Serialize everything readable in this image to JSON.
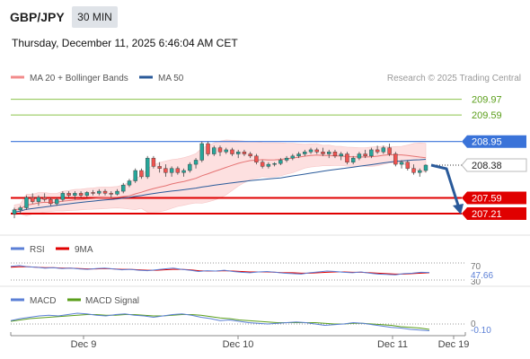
{
  "header": {
    "symbol": "GBP/JPY",
    "interval": "30 MIN",
    "timestamp": "Thursday, December 11, 2025 6:46:04 AM CET"
  },
  "legend": {
    "ma20_bb": "MA 20 + Bollinger Bands",
    "ma50": "MA 50",
    "rsi": "RSI",
    "rsi_ma": "9MA",
    "macd": "MACD",
    "macd_signal": "MACD Signal"
  },
  "watermark": "Research © 2025 Trading Central",
  "colors": {
    "candle_up": "#26a69a",
    "candle_down": "#ef5350",
    "resistance_green": "#8bc34a",
    "pivot_blue": "#3a73d9",
    "support_red": "#e00000",
    "ma20": "#e57373",
    "ma50": "#2a5a9a",
    "bands_fill": "#fde0e0",
    "rsi": "#5b7fd6",
    "rsi_ma": "#e00000",
    "macd": "#5b7fd6",
    "macd_signal": "#5a9e1a",
    "arrow": "#2a5a9a"
  },
  "chart_data": {
    "type": "candlestick",
    "ylim": [
      206.95,
      210.2
    ],
    "x_ticks": [
      "Dec 9",
      "Dec 10",
      "Dec 11",
      "Dec 19"
    ],
    "levels": [
      {
        "label": "209.97",
        "value": 209.97,
        "kind": "resistance"
      },
      {
        "label": "209.59",
        "value": 209.59,
        "kind": "resistance"
      },
      {
        "label": "208.95",
        "value": 208.95,
        "kind": "pivot"
      },
      {
        "label": "208.38",
        "value": 208.38,
        "kind": "last"
      },
      {
        "label": "207.59",
        "value": 207.59,
        "kind": "support"
      },
      {
        "label": "207.21",
        "value": 207.21,
        "kind": "support"
      }
    ],
    "forecast": [
      208.38,
      207.21
    ],
    "candles": [
      [
        207.2,
        207.35,
        207.1,
        207.3
      ],
      [
        207.3,
        207.4,
        207.2,
        207.35
      ],
      [
        207.35,
        207.65,
        207.3,
        207.6
      ],
      [
        207.6,
        207.7,
        207.45,
        207.5
      ],
      [
        207.5,
        207.65,
        207.4,
        207.6
      ],
      [
        207.6,
        207.7,
        207.5,
        207.55
      ],
      [
        207.55,
        207.6,
        207.4,
        207.45
      ],
      [
        207.45,
        207.6,
        207.4,
        207.55
      ],
      [
        207.55,
        207.75,
        207.5,
        207.7
      ],
      [
        207.7,
        207.75,
        207.6,
        207.65
      ],
      [
        207.65,
        207.75,
        207.55,
        207.7
      ],
      [
        207.7,
        207.75,
        207.6,
        207.65
      ],
      [
        207.65,
        207.75,
        207.6,
        207.72
      ],
      [
        207.72,
        207.78,
        207.65,
        207.7
      ],
      [
        207.7,
        207.8,
        207.65,
        207.75
      ],
      [
        207.75,
        207.8,
        207.65,
        207.7
      ],
      [
        207.7,
        207.75,
        207.6,
        207.68
      ],
      [
        207.68,
        207.8,
        207.65,
        207.75
      ],
      [
        207.75,
        207.95,
        207.7,
        207.9
      ],
      [
        207.9,
        208.05,
        207.85,
        208.0
      ],
      [
        208.0,
        208.3,
        207.95,
        208.25
      ],
      [
        208.25,
        208.3,
        208.05,
        208.1
      ],
      [
        208.1,
        208.6,
        208.05,
        208.55
      ],
      [
        208.55,
        208.6,
        208.3,
        208.35
      ],
      [
        208.35,
        208.45,
        208.2,
        208.3
      ],
      [
        208.3,
        208.4,
        208.1,
        208.2
      ],
      [
        208.2,
        208.35,
        208.1,
        208.3
      ],
      [
        208.3,
        208.35,
        208.15,
        208.2
      ],
      [
        208.2,
        208.3,
        208.1,
        208.25
      ],
      [
        208.25,
        208.45,
        208.2,
        208.4
      ],
      [
        208.4,
        208.55,
        208.3,
        208.5
      ],
      [
        208.5,
        208.95,
        208.45,
        208.9
      ],
      [
        208.9,
        208.95,
        208.6,
        208.65
      ],
      [
        208.65,
        208.85,
        208.6,
        208.8
      ],
      [
        208.8,
        208.85,
        208.6,
        208.7
      ],
      [
        208.7,
        208.8,
        208.65,
        208.75
      ],
      [
        208.75,
        208.8,
        208.6,
        208.65
      ],
      [
        208.65,
        208.75,
        208.55,
        208.7
      ],
      [
        208.7,
        208.75,
        208.6,
        208.65
      ],
      [
        208.65,
        208.7,
        208.55,
        208.6
      ],
      [
        208.6,
        208.65,
        208.4,
        208.45
      ],
      [
        208.45,
        208.5,
        208.3,
        208.35
      ],
      [
        208.35,
        208.45,
        208.3,
        208.4
      ],
      [
        208.4,
        208.45,
        208.35,
        208.42
      ],
      [
        208.42,
        208.55,
        208.38,
        208.5
      ],
      [
        208.5,
        208.6,
        208.45,
        208.55
      ],
      [
        208.55,
        208.65,
        208.5,
        208.6
      ],
      [
        208.6,
        208.7,
        208.55,
        208.65
      ],
      [
        208.65,
        208.75,
        208.6,
        208.7
      ],
      [
        208.7,
        208.8,
        208.65,
        208.75
      ],
      [
        208.75,
        208.8,
        208.65,
        208.7
      ],
      [
        208.7,
        208.8,
        208.6,
        208.65
      ],
      [
        208.65,
        208.75,
        208.55,
        208.7
      ],
      [
        208.7,
        208.75,
        208.55,
        208.6
      ],
      [
        208.6,
        208.7,
        208.5,
        208.65
      ],
      [
        208.65,
        208.7,
        208.4,
        208.45
      ],
      [
        208.45,
        208.6,
        208.4,
        208.55
      ],
      [
        208.55,
        208.7,
        208.5,
        208.65
      ],
      [
        208.65,
        208.75,
        208.55,
        208.6
      ],
      [
        208.6,
        208.8,
        208.55,
        208.75
      ],
      [
        208.75,
        208.85,
        208.65,
        208.7
      ],
      [
        208.7,
        208.85,
        208.65,
        208.8
      ],
      [
        208.8,
        208.9,
        208.6,
        208.65
      ],
      [
        208.65,
        208.7,
        208.35,
        208.4
      ],
      [
        208.4,
        208.5,
        208.3,
        208.45
      ],
      [
        208.45,
        208.5,
        208.25,
        208.3
      ],
      [
        208.3,
        208.4,
        208.15,
        208.2
      ],
      [
        208.2,
        208.3,
        208.1,
        208.25
      ],
      [
        208.25,
        208.4,
        208.2,
        208.38
      ]
    ]
  },
  "rsi_panel": {
    "label_70": "70",
    "label_30": "30",
    "value_label": "47.66",
    "rsi": [
      62,
      64,
      61,
      60,
      58,
      59,
      57,
      58,
      56,
      55,
      57,
      58,
      56,
      54,
      55,
      53,
      52,
      54,
      56,
      58,
      55,
      53,
      50,
      52,
      51,
      53,
      50,
      48,
      47,
      49,
      50,
      48,
      46,
      45,
      44,
      47,
      49,
      51,
      50,
      48,
      47,
      49,
      46,
      44,
      43,
      42,
      45,
      46,
      48,
      47.66
    ],
    "ma": [
      60,
      61,
      61,
      60,
      59,
      59,
      58,
      58,
      57,
      56,
      56,
      57,
      56,
      55,
      55,
      54,
      53,
      53,
      54,
      55,
      55,
      54,
      52,
      51,
      51,
      52,
      51,
      50,
      49,
      49,
      49,
      48,
      47,
      47,
      46,
      46,
      47,
      48,
      49,
      49,
      48,
      48,
      47,
      46,
      45,
      44,
      44,
      45,
      46,
      47
    ]
  },
  "macd_panel": {
    "label_0": "0",
    "value_label": "-0.10",
    "macd": [
      0.05,
      0.08,
      0.1,
      0.12,
      0.13,
      0.12,
      0.14,
      0.16,
      0.15,
      0.13,
      0.12,
      0.14,
      0.15,
      0.13,
      0.12,
      0.1,
      0.12,
      0.14,
      0.15,
      0.13,
      0.1,
      0.08,
      0.05,
      0.06,
      0.04,
      0.02,
      0.01,
      0.0,
      0.01,
      0.02,
      0.03,
      0.02,
      0.0,
      -0.02,
      -0.01,
      0.0,
      0.02,
      0.01,
      -0.01,
      -0.03,
      -0.05,
      -0.06,
      -0.08,
      -0.09,
      -0.1
    ],
    "signal": [
      0.04,
      0.06,
      0.08,
      0.09,
      0.1,
      0.11,
      0.12,
      0.13,
      0.14,
      0.14,
      0.13,
      0.13,
      0.14,
      0.14,
      0.13,
      0.12,
      0.12,
      0.13,
      0.14,
      0.14,
      0.13,
      0.11,
      0.09,
      0.08,
      0.06,
      0.05,
      0.04,
      0.03,
      0.02,
      0.02,
      0.02,
      0.02,
      0.02,
      0.01,
      0.0,
      0.0,
      0.01,
      0.01,
      0.0,
      -0.01,
      -0.02,
      -0.04,
      -0.05,
      -0.06,
      -0.08
    ]
  }
}
